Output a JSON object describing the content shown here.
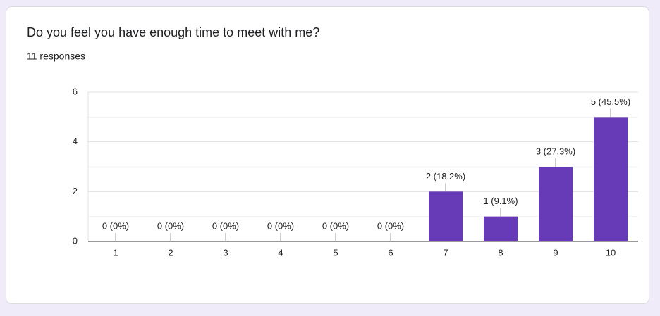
{
  "chart_data": {
    "type": "bar",
    "title": "Do you feel you have enough time to meet with me?",
    "subtitle": "11 responses",
    "categories": [
      "1",
      "2",
      "3",
      "4",
      "5",
      "6",
      "7",
      "8",
      "9",
      "10"
    ],
    "values": [
      0,
      0,
      0,
      0,
      0,
      0,
      2,
      1,
      3,
      5
    ],
    "value_labels": [
      "0 (0%)",
      "0 (0%)",
      "0 (0%)",
      "0 (0%)",
      "0 (0%)",
      "0 (0%)",
      "2 (18.2%)",
      "1 (9.1%)",
      "3 (27.3%)",
      "5 (45.5%)"
    ],
    "color": "#673ab7",
    "ylim": [
      0,
      6
    ],
    "yticks": [
      0,
      2,
      4,
      6
    ],
    "minor_yticks": [
      1,
      3,
      5
    ],
    "grid": true
  }
}
